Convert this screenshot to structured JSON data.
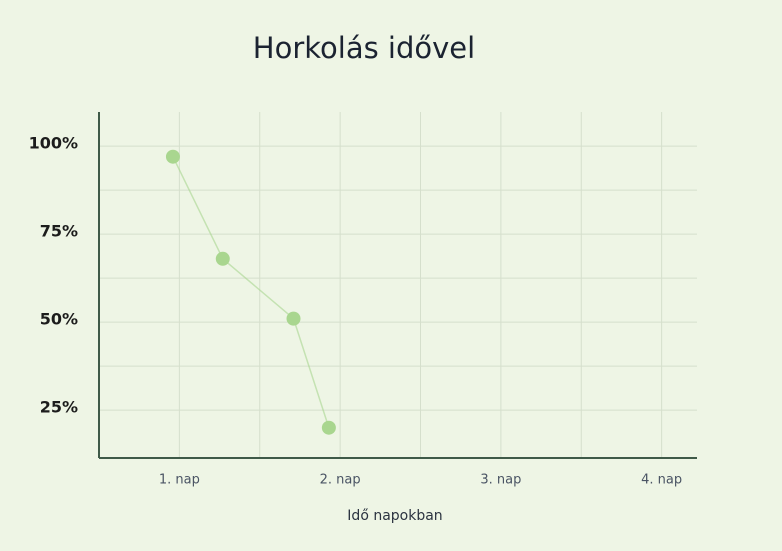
{
  "chart_data": {
    "type": "line",
    "title": "Horkolás idővel",
    "x_label": "Idő napokban",
    "x": [
      0.96,
      1.27,
      1.71,
      1.93
    ],
    "series": [
      {
        "color": "#a9d68f",
        "values": [
          97,
          68,
          51,
          20
        ]
      }
    ],
    "xlim": [
      0.5,
      4.22
    ],
    "xticks": [
      {
        "value": 1,
        "label": "1. nap"
      },
      {
        "value": 2,
        "label": "2. nap"
      },
      {
        "value": 3,
        "label": "3. nap"
      },
      {
        "value": 4,
        "label": "4. nap"
      }
    ],
    "ylim": [
      11.4,
      109.7
    ],
    "yticks": [
      {
        "value": 25,
        "label": "25%"
      },
      {
        "value": 50,
        "label": "50%"
      },
      {
        "value": 75,
        "label": "75%"
      },
      {
        "value": 100,
        "label": "100%"
      }
    ],
    "grid": true,
    "minor_grid": true
  }
}
